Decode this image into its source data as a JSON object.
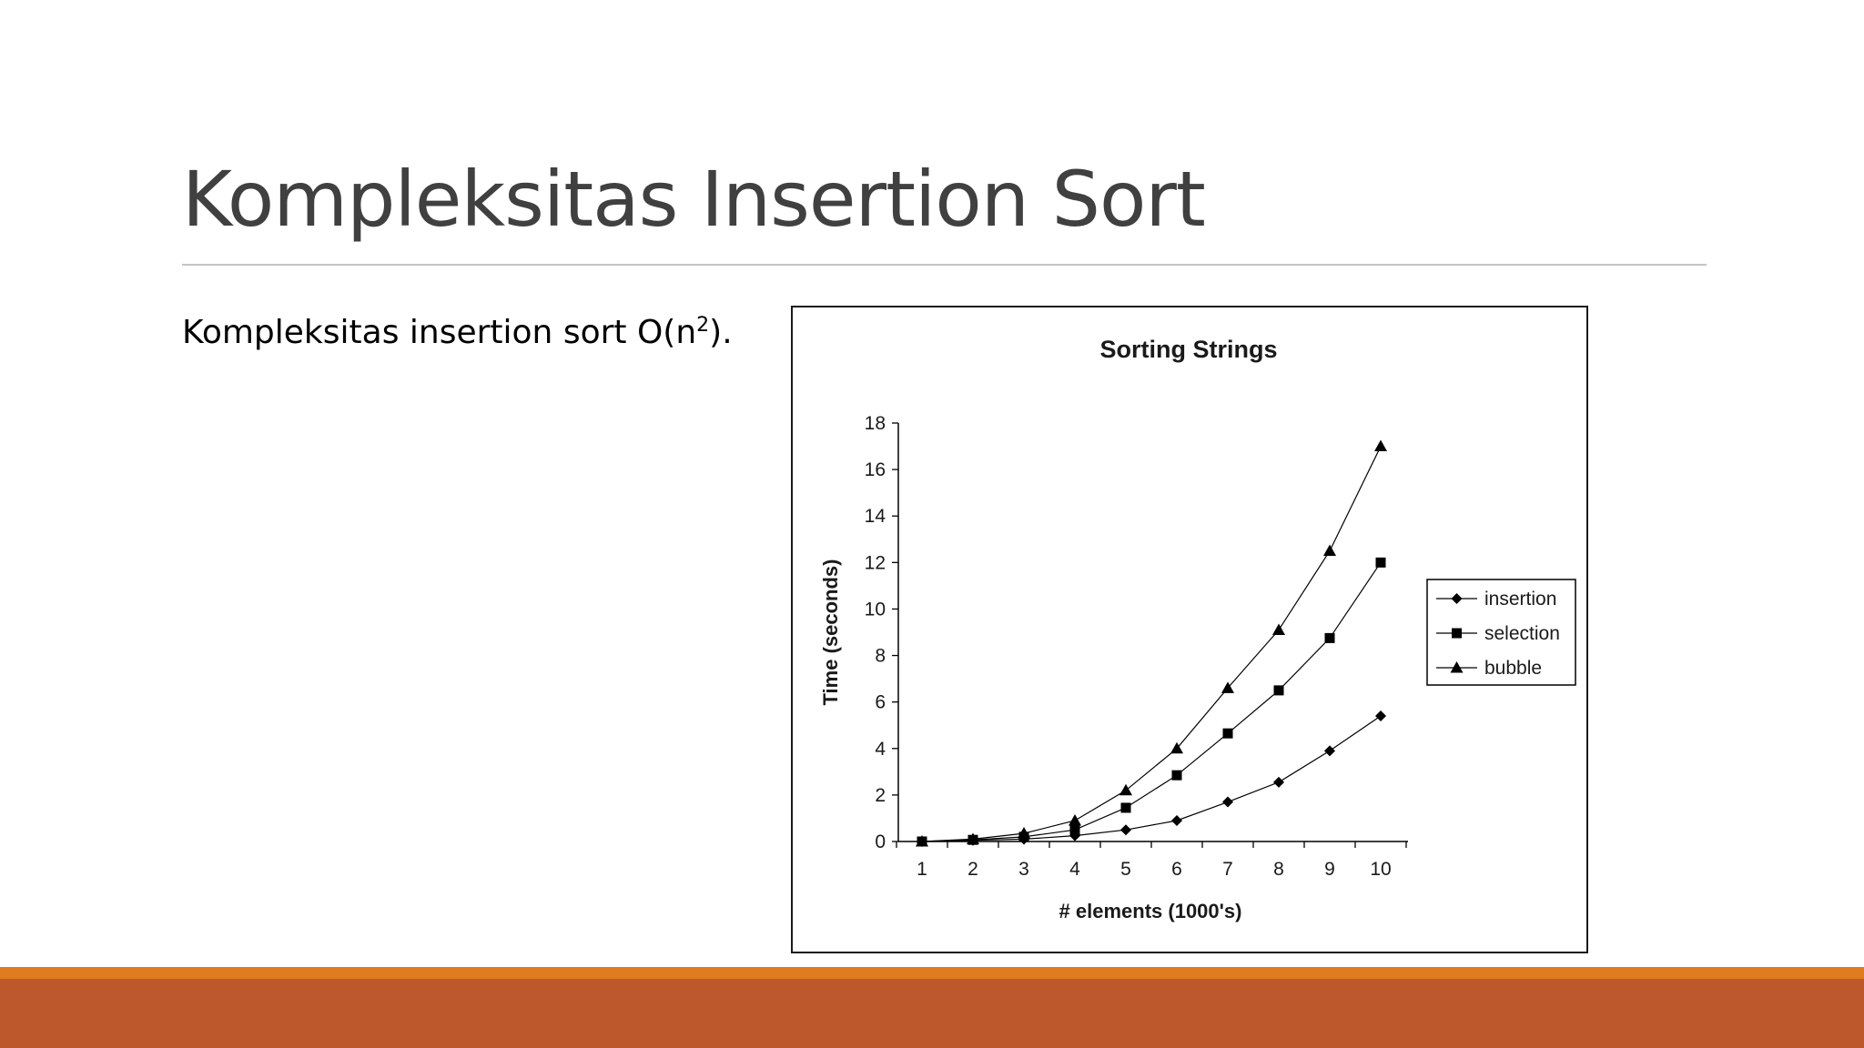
{
  "slide": {
    "title": "Kompleksitas Insertion Sort",
    "body_prefix": "Kompleksitas insertion sort O(n",
    "body_sup": "2",
    "body_suffix": ")."
  },
  "colors": {
    "title": "#404040",
    "rule": "#c4c4c4",
    "band_top": "#e07b1f",
    "band_bottom": "#bd582c",
    "series": "#000000"
  },
  "chart_data": {
    "type": "line",
    "title": "Sorting Strings",
    "xlabel": "# elements (1000's)",
    "ylabel": "Time (seconds)",
    "x": [
      1,
      2,
      3,
      4,
      5,
      6,
      7,
      8,
      9,
      10
    ],
    "ylim": [
      0,
      18
    ],
    "yticks": [
      0,
      2,
      4,
      6,
      8,
      10,
      12,
      14,
      16,
      18
    ],
    "grid": false,
    "legend_position": "right",
    "series": [
      {
        "name": "insertion",
        "marker": "diamond",
        "values": [
          0.0,
          0.05,
          0.1,
          0.25,
          0.5,
          0.9,
          1.7,
          2.55,
          3.9,
          5.4
        ]
      },
      {
        "name": "selection",
        "marker": "square",
        "values": [
          0.0,
          0.07,
          0.2,
          0.5,
          1.45,
          2.85,
          4.65,
          6.5,
          8.75,
          12.0
        ]
      },
      {
        "name": "bubble",
        "marker": "triangle",
        "values": [
          0.0,
          0.1,
          0.35,
          0.9,
          2.2,
          4.0,
          6.6,
          9.1,
          12.5,
          17.0
        ]
      }
    ]
  }
}
